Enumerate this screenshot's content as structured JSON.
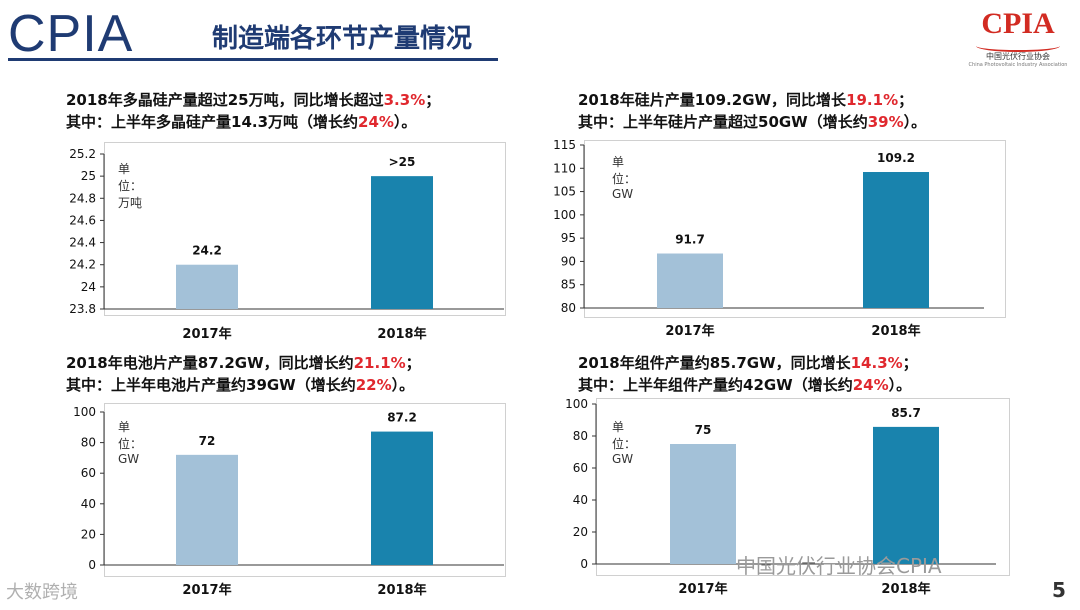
{
  "header": {
    "logo_text": "CPIA",
    "title": "制造端各环节产量情况",
    "right_logo": {
      "name": "CPIA",
      "cn": "中国光伏行业协会",
      "en": "China Photovoltaic Industry Association"
    }
  },
  "captions": [
    {
      "line1": [
        {
          "t": "2018年多晶硅产量超过25万吨，同比增长超过"
        },
        {
          "t": "3.3%",
          "red": true
        },
        {
          "t": "；"
        }
      ],
      "line2": [
        {
          "t": "其中：上半年多晶硅产量14.3万吨（增长约"
        },
        {
          "t": "24%",
          "red": true
        },
        {
          "t": "）。"
        }
      ]
    },
    {
      "line1": [
        {
          "t": "2018年硅片产量109.2GW，同比增长"
        },
        {
          "t": "19.1%",
          "red": true
        },
        {
          "t": "；"
        }
      ],
      "line2": [
        {
          "t": "其中：上半年硅片产量超过50GW（增长约"
        },
        {
          "t": "39%",
          "red": true
        },
        {
          "t": "）。"
        }
      ]
    },
    {
      "line1": [
        {
          "t": "2018年电池片产量87.2GW，同比增长约"
        },
        {
          "t": "21.1%",
          "red": true
        },
        {
          "t": "；"
        }
      ],
      "line2": [
        {
          "t": "其中：上半年电池片产量约39GW（增长约"
        },
        {
          "t": "22%",
          "red": true
        },
        {
          "t": "）。"
        }
      ]
    },
    {
      "line1": [
        {
          "t": "2018年组件产量约85.7GW，同比增长"
        },
        {
          "t": "14.3%",
          "red": true
        },
        {
          "t": "；"
        }
      ],
      "line2": [
        {
          "t": "其中：上半年组件产量约42GW（增长约"
        },
        {
          "t": "24%",
          "red": true
        },
        {
          "t": "）。"
        }
      ]
    }
  ],
  "chart_data": [
    {
      "id": "polysilicon",
      "type": "bar",
      "unit_label": "单位：万吨",
      "categories": [
        "2017年",
        "2018年"
      ],
      "values": [
        24.2,
        25.0
      ],
      "value_labels": [
        "24.2",
        ">25"
      ],
      "ylim": [
        23.8,
        25.2
      ],
      "yticks": [
        "23.8",
        "24",
        "24.2",
        "24.4",
        "24.6",
        "24.8",
        "25",
        "25.2"
      ],
      "colors": [
        "#a3c1d8",
        "#1983ad"
      ]
    },
    {
      "id": "wafer",
      "type": "bar",
      "unit_label": "单位：GW",
      "categories": [
        "2017年",
        "2018年"
      ],
      "values": [
        91.7,
        109.2
      ],
      "value_labels": [
        "91.7",
        "109.2"
      ],
      "ylim": [
        80,
        115
      ],
      "yticks": [
        "80",
        "85",
        "90",
        "95",
        "100",
        "105",
        "110",
        "115"
      ],
      "colors": [
        "#a3c1d8",
        "#1983ad"
      ]
    },
    {
      "id": "cell",
      "type": "bar",
      "unit_label": "单位：GW",
      "categories": [
        "2017年",
        "2018年"
      ],
      "values": [
        72,
        87.2
      ],
      "value_labels": [
        "72",
        "87.2"
      ],
      "ylim": [
        0,
        100
      ],
      "yticks": [
        "0",
        "20",
        "40",
        "60",
        "80",
        "100"
      ],
      "colors": [
        "#a3c1d8",
        "#1983ad"
      ]
    },
    {
      "id": "module",
      "type": "bar",
      "unit_label": "单位：GW",
      "categories": [
        "2017年",
        "2018年"
      ],
      "values": [
        75,
        85.7
      ],
      "value_labels": [
        "75",
        "85.7"
      ],
      "ylim": [
        0,
        100
      ],
      "yticks": [
        "0",
        "20",
        "40",
        "60",
        "80",
        "100"
      ],
      "colors": [
        "#a3c1d8",
        "#1983ad"
      ]
    }
  ],
  "footer": {
    "watermark_right": "中国光伏行业协会CPIA",
    "watermark_left": "大数跨境",
    "page_number": "5"
  }
}
